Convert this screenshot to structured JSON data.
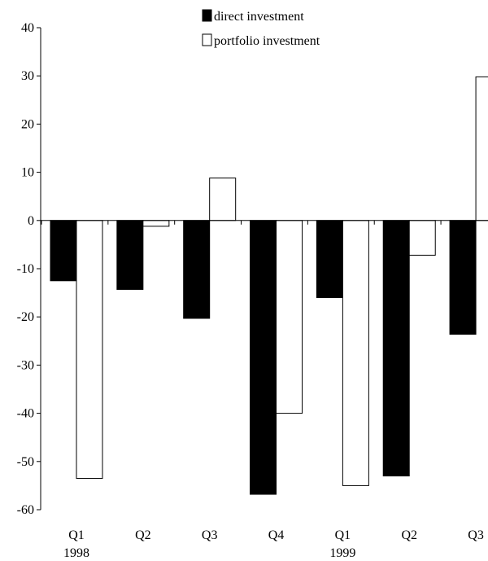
{
  "chart_data": {
    "type": "bar",
    "title": "",
    "xlabel": "",
    "ylabel": "",
    "categories": [
      "Q1",
      "Q2",
      "Q3",
      "Q4",
      "Q1",
      "Q2",
      "Q3"
    ],
    "year_labels": [
      "1998",
      "",
      "",
      "",
      "1999",
      "",
      ""
    ],
    "series": [
      {
        "name": "direct investment",
        "values": [
          -12.5,
          -14.3,
          -20.3,
          -56.8,
          -16.0,
          -53.0,
          -23.6
        ],
        "fill": "#000000"
      },
      {
        "name": "portfolio investment",
        "values": [
          -53.5,
          -1.2,
          8.8,
          -40.0,
          -55.0,
          -7.2,
          29.8
        ],
        "fill": "#ffffff"
      }
    ],
    "ylim": [
      -60,
      40
    ],
    "yticks": [
      40,
      30,
      20,
      10,
      0,
      -10,
      -20,
      -30,
      -40,
      -50,
      -60
    ],
    "grid": false,
    "legend_position": "top-center"
  }
}
